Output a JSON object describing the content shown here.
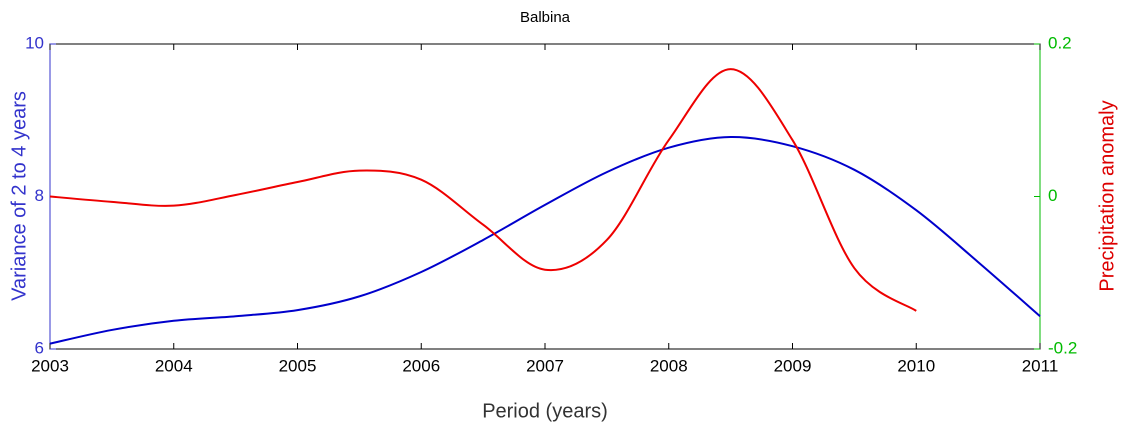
{
  "chart_data": {
    "type": "line",
    "title": "Balbina",
    "x_label": "Period (years)",
    "y_label": "Variance of 2 to 4 years",
    "y2_label": "Precipitation anomaly",
    "x": [
      2003,
      2003.5,
      2004,
      2004.5,
      2005,
      2005.5,
      2006,
      2006.5,
      2007,
      2007.5,
      2008,
      2008.5,
      2009,
      2009.5,
      2010,
      2010.5,
      2011
    ],
    "series": [
      {
        "name": "Variance of 2 to 4 years",
        "color": "#0000cc",
        "values": [
          6.07,
          6.25,
          6.37,
          6.43,
          6.51,
          6.69,
          7.01,
          7.43,
          7.89,
          8.32,
          8.64,
          8.78,
          8.66,
          8.35,
          7.82,
          7.14,
          6.43
        ]
      },
      {
        "name": "Precipitation anomaly",
        "color": "#ee0000",
        "axis": "y2",
        "values": [
          0,
          -0.007,
          -0.012,
          0.002,
          0.019,
          0.034,
          0.022,
          -0.037,
          -0.096,
          -0.057,
          0.074,
          0.167,
          0.074,
          -0.094,
          -0.15,
          null,
          null
        ]
      }
    ],
    "xlim": [
      2003,
      2011
    ],
    "xticks": [
      2003,
      2004,
      2005,
      2006,
      2007,
      2008,
      2009,
      2010,
      2011
    ],
    "ylim": [
      6,
      10
    ],
    "yticks": [
      6,
      8,
      10
    ],
    "y2lim": [
      -0.2,
      0.2
    ],
    "y2ticks": [
      -0.2,
      0,
      0.2
    ],
    "y_color": "#3333cc",
    "y2_color": "#00bb00"
  }
}
